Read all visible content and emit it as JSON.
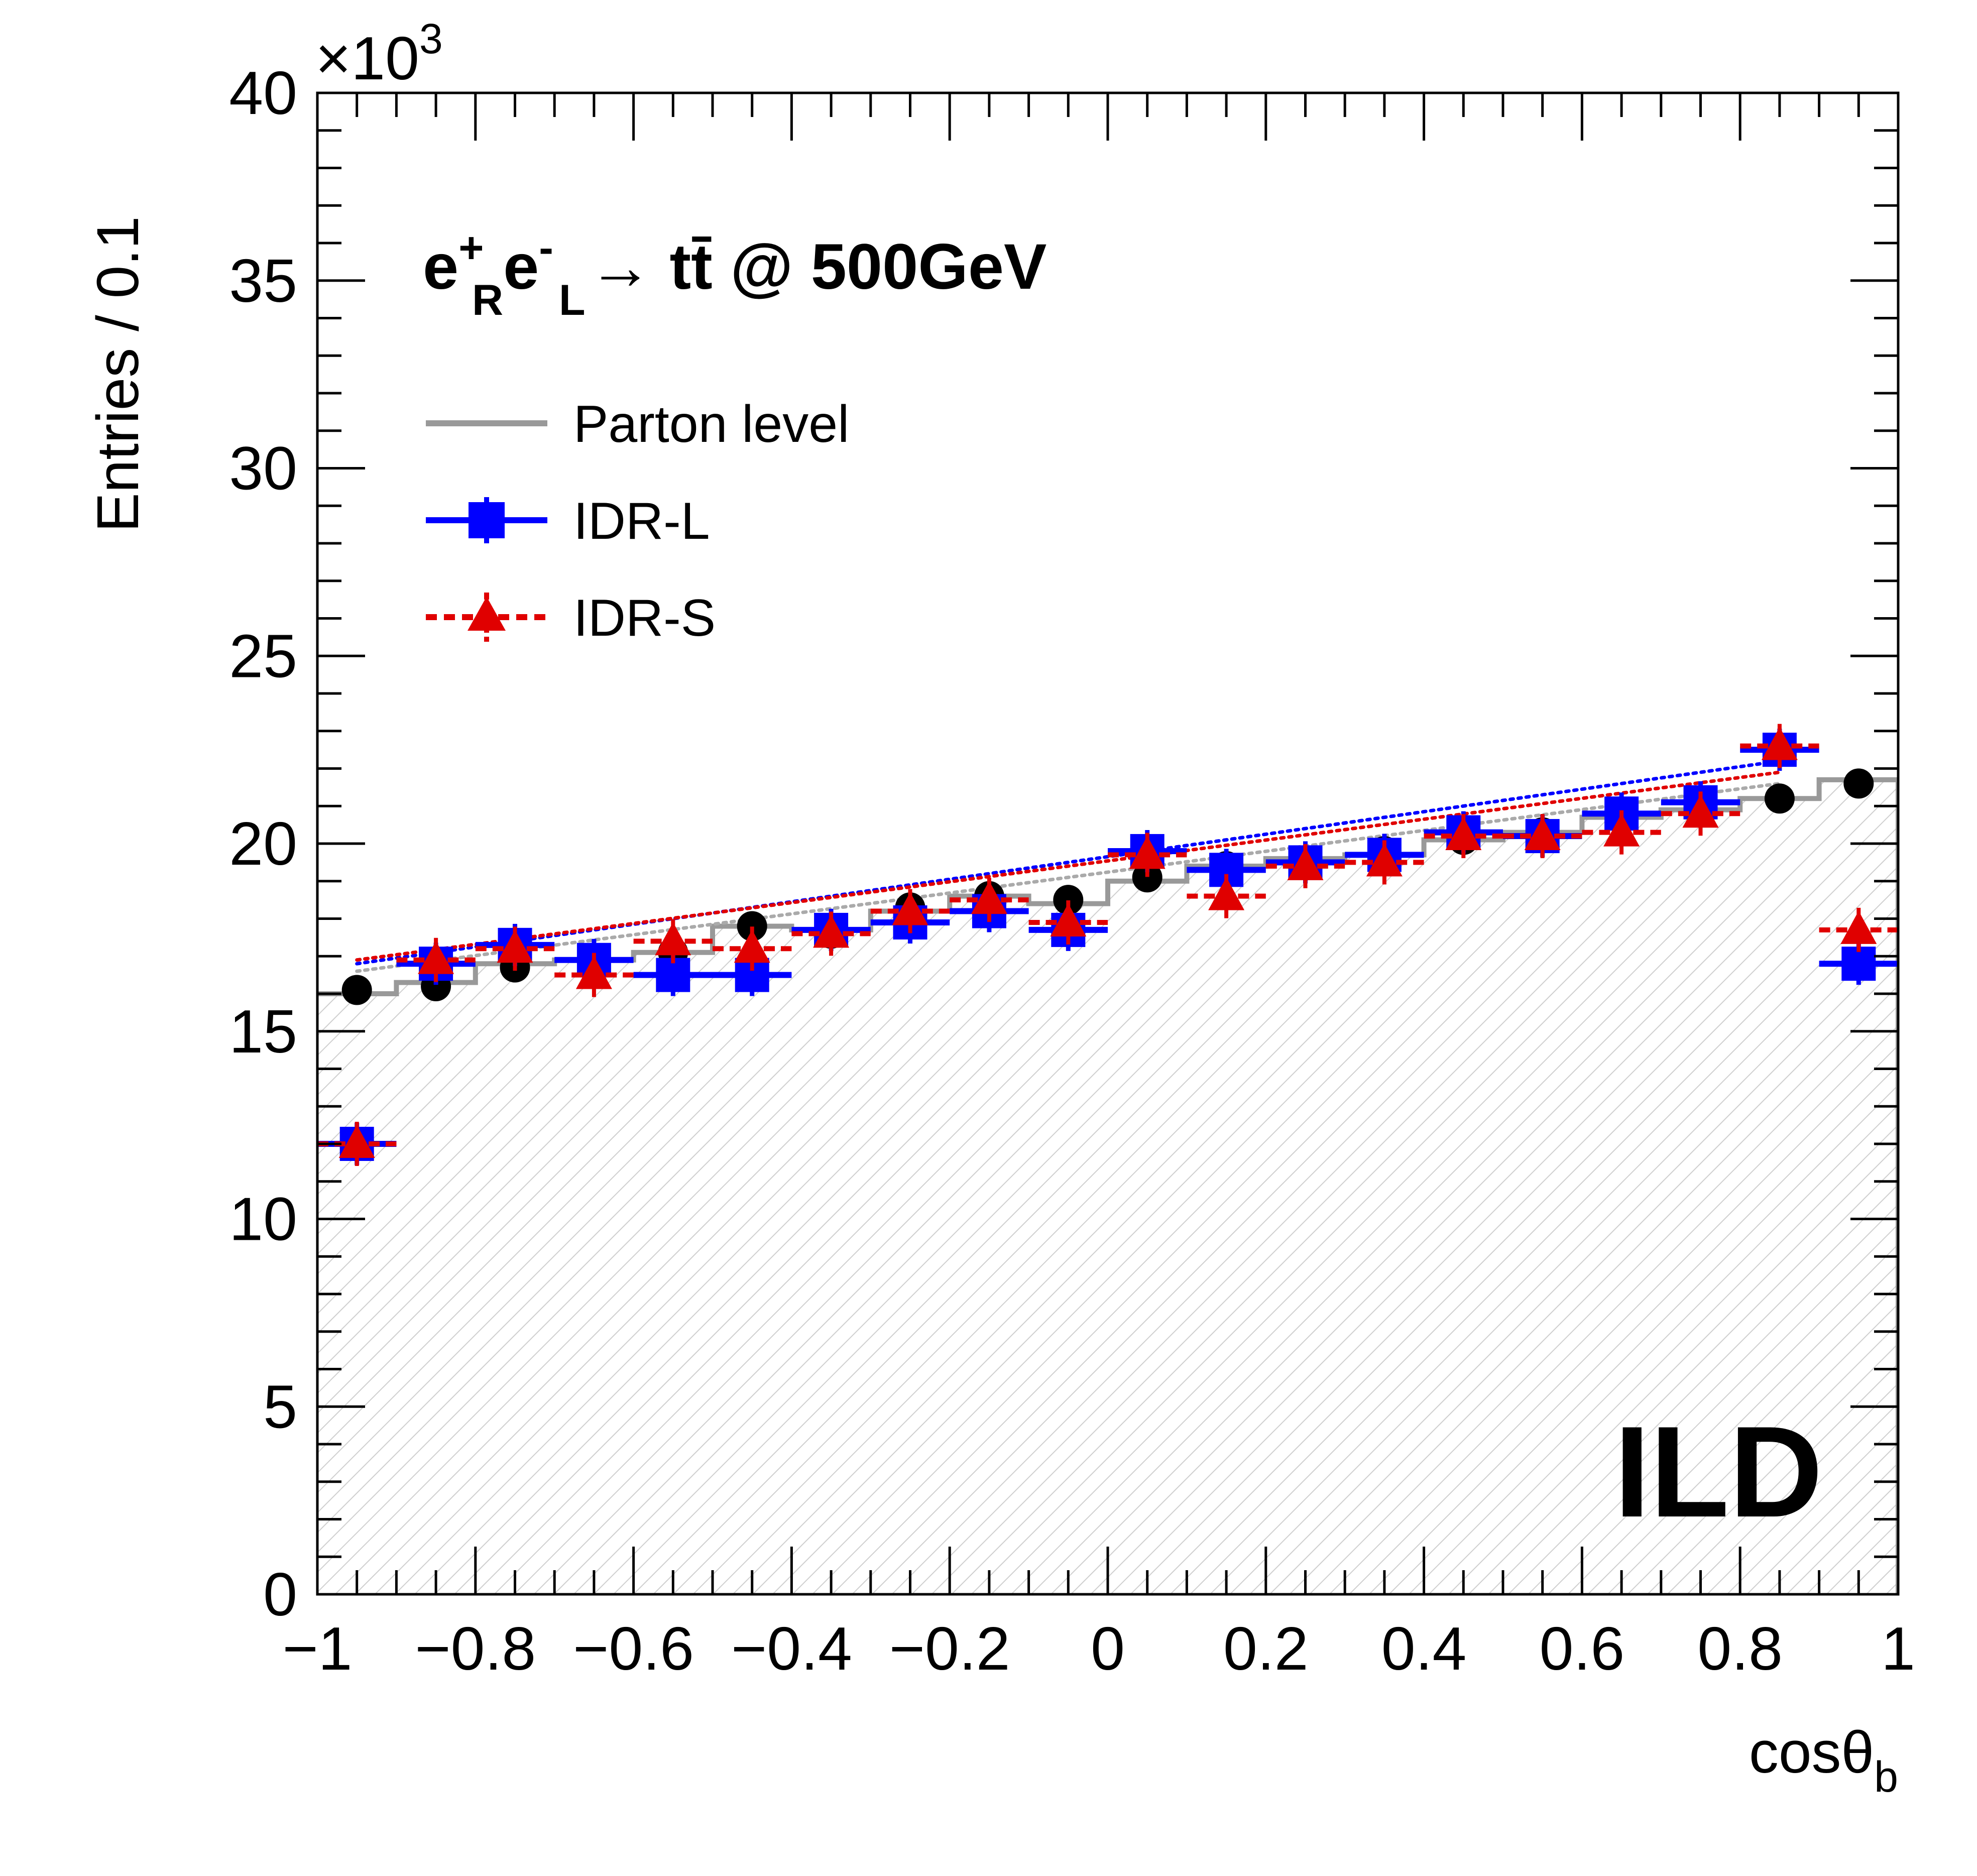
{
  "chart_data": {
    "type": "histogram",
    "xlabel": "cosθ",
    "xlabel_sub": "b",
    "ylabel": "Entries / 0.1",
    "y_multiplier": "×10",
    "y_multiplier_exp": "3",
    "xlim": [
      -1,
      1
    ],
    "ylim": [
      0,
      40
    ],
    "x_ticks": [
      {
        "v": -1,
        "label": "−1"
      },
      {
        "v": -0.8,
        "label": "−0.8"
      },
      {
        "v": -0.6,
        "label": "−0.6"
      },
      {
        "v": -0.4,
        "label": "−0.4"
      },
      {
        "v": -0.2,
        "label": "−0.2"
      },
      {
        "v": 0,
        "label": "0"
      },
      {
        "v": 0.2,
        "label": "0.2"
      },
      {
        "v": 0.4,
        "label": "0.4"
      },
      {
        "v": 0.6,
        "label": "0.6"
      },
      {
        "v": 0.8,
        "label": "0.8"
      },
      {
        "v": 1,
        "label": "1"
      }
    ],
    "y_ticks": [
      {
        "v": 0,
        "label": "0"
      },
      {
        "v": 5,
        "label": "5"
      },
      {
        "v": 10,
        "label": "10"
      },
      {
        "v": 15,
        "label": "15"
      },
      {
        "v": 20,
        "label": "20"
      },
      {
        "v": 25,
        "label": "25"
      },
      {
        "v": 30,
        "label": "30"
      },
      {
        "v": 35,
        "label": "35"
      },
      {
        "v": 40,
        "label": "40"
      }
    ],
    "bin_centers": [
      -0.95,
      -0.85,
      -0.75,
      -0.65,
      -0.55,
      -0.45,
      -0.35,
      -0.25,
      -0.15,
      -0.05,
      0.05,
      0.15,
      0.25,
      0.35,
      0.45,
      0.55,
      0.65,
      0.75,
      0.85,
      0.95
    ],
    "bin_width": 0.1,
    "series": [
      {
        "name": "Parton level",
        "style": "step-filled",
        "color": "#999999",
        "values": [
          16.0,
          16.3,
          16.8,
          16.9,
          17.1,
          17.8,
          17.7,
          18.2,
          18.6,
          18.4,
          19.0,
          19.4,
          19.6,
          19.7,
          20.1,
          20.3,
          20.7,
          20.9,
          21.2,
          21.7
        ]
      },
      {
        "name": "",
        "style": "marker-circle",
        "color": "#000000",
        "values": [
          16.1,
          16.2,
          16.7,
          16.8,
          17.1,
          17.8,
          17.6,
          18.3,
          18.6,
          18.5,
          19.1,
          19.4,
          19.5,
          19.8,
          20.1,
          20.3,
          20.7,
          21.0,
          21.2,
          21.6
        ]
      },
      {
        "name": "IDR-L",
        "style": "marker-square",
        "color": "#0000ff",
        "values": [
          12.0,
          16.8,
          17.3,
          16.9,
          16.5,
          16.5,
          17.7,
          17.9,
          18.2,
          17.7,
          19.8,
          19.3,
          19.5,
          19.7,
          20.3,
          20.2,
          20.8,
          21.1,
          22.5,
          16.8
        ]
      },
      {
        "name": "IDR-S",
        "style": "marker-triangle",
        "color": "#e00000",
        "values": [
          12.0,
          16.9,
          17.2,
          16.5,
          17.4,
          17.2,
          17.6,
          18.2,
          18.5,
          17.9,
          19.7,
          18.6,
          19.4,
          19.5,
          20.2,
          20.2,
          20.3,
          20.8,
          22.6,
          17.7
        ]
      }
    ],
    "fit_lines": [
      {
        "color": "#0000ff",
        "from": [
          -0.95,
          16.8
        ],
        "to": [
          0.85,
          22.2
        ]
      },
      {
        "color": "#e00000",
        "from": [
          -0.95,
          16.9
        ],
        "to": [
          0.85,
          21.9
        ]
      },
      {
        "color": "#aaaaaa",
        "from": [
          -0.95,
          16.6
        ],
        "to": [
          0.85,
          21.6
        ]
      }
    ],
    "legend": {
      "placement": "top-left",
      "items": [
        {
          "label": "Parton level",
          "color": "#999999",
          "kind": "line"
        },
        {
          "label": "IDR-L",
          "color": "#0000ff",
          "kind": "square"
        },
        {
          "label": "IDR-S",
          "color": "#e00000",
          "kind": "triangle"
        }
      ]
    },
    "process": {
      "main": "e",
      "p1_sup": "+",
      "p1_sub": "R",
      "p2": "e",
      "p2_sup": "-",
      "p2_sub": "L",
      "arrow": "→",
      "final": "tt̄ @ 500GeV"
    },
    "watermark": "ILD",
    "grid": false
  }
}
